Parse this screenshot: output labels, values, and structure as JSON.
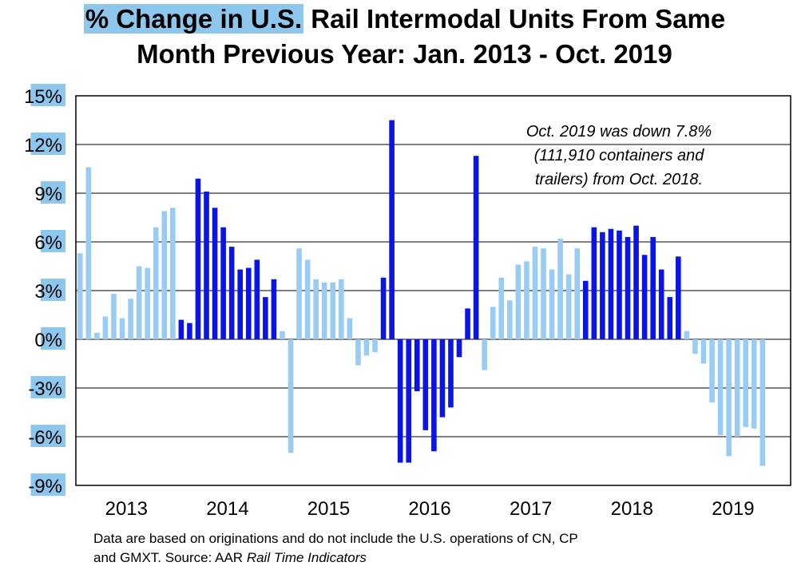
{
  "title": {
    "highlighted": "% Change in U.S.",
    "rest": " Rail Intermodal Units From Same",
    "line2": "Month Previous Year: Jan. 2013 - Oct. 2019"
  },
  "annotation": {
    "line1": "Oct. 2019 was down 7.8%",
    "line2": "(111,910 containers and",
    "line3": "trailers) from Oct. 2018."
  },
  "footer": {
    "line1": "Data are based on originations and do not include the U.S. operations of CN, CP",
    "line2_prefix": "and GMXT.   Source: AAR ",
    "line2_italic": "Rail Time Indicators"
  },
  "colors": {
    "light": "#99ccf5",
    "dark": "#0a14e6",
    "tick_label_bg": "#8ec7ee"
  },
  "chart_data": {
    "type": "bar",
    "ylim": [
      -9,
      15
    ],
    "yticks": [
      -9,
      -6,
      -3,
      0,
      3,
      6,
      9,
      12,
      15
    ],
    "ytick_labels": [
      "-9%",
      "-6%",
      "-3%",
      "0%",
      "3%",
      "6%",
      "9%",
      "12%",
      "15%"
    ],
    "grid": true,
    "xtick_labels": [
      "2013",
      "2014",
      "2015",
      "2016",
      "2017",
      "2018",
      "2019"
    ],
    "bar_color_scheme": "light = 2013, 2015, 2017, 2019; dark = 2014, 2016, 2018",
    "series": [
      {
        "year": "2013",
        "color": "light",
        "values": [
          5.3,
          10.6,
          0.4,
          1.4,
          2.8,
          1.3,
          2.5,
          4.5,
          4.4,
          6.9,
          7.9,
          8.1
        ]
      },
      {
        "year": "2014",
        "color": "dark",
        "values": [
          1.2,
          1.0,
          9.9,
          9.1,
          8.1,
          6.9,
          5.7,
          4.3,
          4.4,
          4.9,
          2.6,
          3.7
        ]
      },
      {
        "year": "2015",
        "color": "light",
        "values": [
          0.5,
          -7.0,
          5.6,
          4.9,
          3.7,
          3.5,
          3.5,
          3.7,
          1.3,
          -1.6,
          -1.0,
          -0.8
        ]
      },
      {
        "year": "2016",
        "color": "dark",
        "values": [
          3.8,
          13.5,
          -7.6,
          -7.6,
          -3.2,
          -5.6,
          -6.9,
          -4.8,
          -4.2,
          -1.1,
          1.9,
          11.3
        ]
      },
      {
        "year": "2017",
        "color": "light",
        "values": [
          -1.9,
          2.0,
          3.8,
          2.4,
          4.6,
          4.8,
          5.7,
          5.6,
          4.3,
          6.2,
          4.0,
          5.6
        ]
      },
      {
        "year": "2018",
        "color": "dark",
        "values": [
          3.6,
          6.9,
          6.6,
          6.8,
          6.7,
          6.3,
          7.0,
          5.2,
          6.3,
          4.3,
          2.6,
          5.1
        ]
      },
      {
        "year": "2019",
        "color": "light",
        "values": [
          0.5,
          -0.9,
          -1.5,
          -3.9,
          -5.9,
          -7.2,
          -6.0,
          -5.4,
          -5.5,
          -7.8
        ]
      }
    ]
  }
}
